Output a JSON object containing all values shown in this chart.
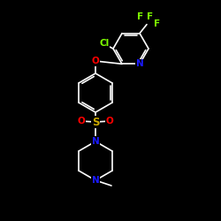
{
  "background": "#000000",
  "bond_color": "#ffffff",
  "atom_colors": {
    "Cl": "#7fff00",
    "F": "#7fff00",
    "O": "#ff0000",
    "N": "#1a1aff",
    "S": "#ccaa00",
    "C": "#ffffff"
  },
  "bond_width": 1.2,
  "font_size": 7.5,
  "font_size_large": 8.5
}
